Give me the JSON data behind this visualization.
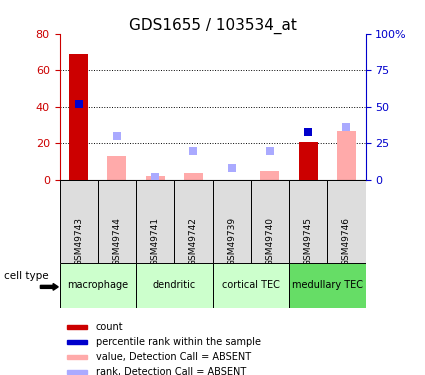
{
  "title": "GDS1655 / 103534_at",
  "samples": [
    "GSM49743",
    "GSM49744",
    "GSM49741",
    "GSM49742",
    "GSM49739",
    "GSM49740",
    "GSM49745",
    "GSM49746"
  ],
  "count_values": [
    69,
    0,
    0,
    0,
    0,
    0,
    21,
    0
  ],
  "count_color": "#cc0000",
  "rank_values": [
    52,
    0,
    0,
    0,
    0,
    0,
    33,
    0
  ],
  "rank_color": "#0000cc",
  "absent_value_values": [
    0,
    13,
    2,
    4,
    0,
    5,
    0,
    27
  ],
  "absent_value_color": "#ffaaaa",
  "absent_rank_values": [
    0,
    30,
    2,
    20,
    8,
    20,
    0,
    36
  ],
  "absent_rank_color": "#aaaaff",
  "left_ylim": [
    0,
    80
  ],
  "left_yticks": [
    0,
    20,
    40,
    60,
    80
  ],
  "right_ylim": [
    0,
    100
  ],
  "right_yticks": [
    0,
    25,
    50,
    75,
    100
  ],
  "right_yticklabels": [
    "0",
    "25",
    "50",
    "75",
    "100%"
  ],
  "grid_lines": [
    20,
    40,
    60
  ],
  "bar_width": 0.5,
  "marker_size": 6,
  "bg_color": "#ffffff",
  "tick_label_color_left": "#cc0000",
  "tick_label_color_right": "#0000cc",
  "title_fontsize": 11,
  "legend_items": [
    {
      "label": "count",
      "color": "#cc0000"
    },
    {
      "label": "percentile rank within the sample",
      "color": "#0000cc"
    },
    {
      "label": "value, Detection Call = ABSENT",
      "color": "#ffaaaa"
    },
    {
      "label": "rank, Detection Call = ABSENT",
      "color": "#aaaaff"
    }
  ],
  "cell_groups": [
    {
      "label": "macrophage",
      "cols": [
        0,
        1
      ],
      "color": "#ccffcc"
    },
    {
      "label": "dendritic",
      "cols": [
        2,
        3
      ],
      "color": "#ccffcc"
    },
    {
      "label": "cortical TEC",
      "cols": [
        4,
        5
      ],
      "color": "#ccffcc"
    },
    {
      "label": "medullary TEC",
      "cols": [
        6,
        7
      ],
      "color": "#66dd66"
    }
  ],
  "sample_box_color": "#dddddd",
  "cell_type_label": "cell type"
}
